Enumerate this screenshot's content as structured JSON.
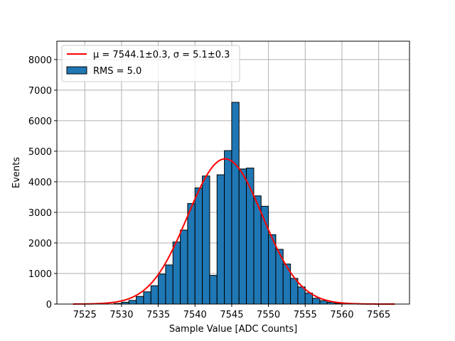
{
  "chart_data": {
    "type": "bar",
    "title": "",
    "xlabel": "Sample Value [ADC Counts]",
    "ylabel": "Events",
    "xlim": [
      7521.2,
      7569.2
    ],
    "ylim": [
      0,
      8600
    ],
    "xticks": [
      7525,
      7530,
      7535,
      7540,
      7545,
      7550,
      7555,
      7560,
      7565
    ],
    "yticks": [
      0,
      1000,
      2000,
      3000,
      4000,
      5000,
      6000,
      7000,
      8000
    ],
    "grid": true,
    "legend_position": "top-left",
    "bar_color": "#1f77b4",
    "bar_edge_color": "#000000",
    "fit_color": "#ff0000",
    "histogram": {
      "name": "RMS = 5.0",
      "bin_width": 1,
      "bins": [
        {
          "x0": 7529,
          "value": 20
        },
        {
          "x0": 7530,
          "value": 60
        },
        {
          "x0": 7531,
          "value": 120
        },
        {
          "x0": 7532,
          "value": 250
        },
        {
          "x0": 7533,
          "value": 400
        },
        {
          "x0": 7534,
          "value": 600
        },
        {
          "x0": 7535,
          "value": 980
        },
        {
          "x0": 7536,
          "value": 1280
        },
        {
          "x0": 7537,
          "value": 2030
        },
        {
          "x0": 7538,
          "value": 2420
        },
        {
          "x0": 7539,
          "value": 3290
        },
        {
          "x0": 7540,
          "value": 3800
        },
        {
          "x0": 7541,
          "value": 4190
        },
        {
          "x0": 7542,
          "value": 940
        },
        {
          "x0": 7543,
          "value": 4230
        },
        {
          "x0": 7544,
          "value": 5020
        },
        {
          "x0": 7545,
          "value": 6600
        },
        {
          "x0": 7546,
          "value": 4420
        },
        {
          "x0": 7547,
          "value": 4450
        },
        {
          "x0": 7548,
          "value": 3540
        },
        {
          "x0": 7549,
          "value": 3200
        },
        {
          "x0": 7550,
          "value": 2270
        },
        {
          "x0": 7551,
          "value": 1790
        },
        {
          "x0": 7552,
          "value": 1310
        },
        {
          "x0": 7553,
          "value": 840
        },
        {
          "x0": 7554,
          "value": 560
        },
        {
          "x0": 7555,
          "value": 360
        },
        {
          "x0": 7556,
          "value": 190
        },
        {
          "x0": 7557,
          "value": 110
        },
        {
          "x0": 7558,
          "value": 60
        },
        {
          "x0": 7559,
          "value": 25
        },
        {
          "x0": 7560,
          "value": 10
        }
      ]
    },
    "fit": {
      "name": "μ = 7544.1±0.3, σ = 5.1±0.3",
      "type": "gaussian",
      "mu": 7544.1,
      "sigma": 5.1,
      "amplitude": 4750,
      "x_range": [
        7523.4,
        7567.2
      ]
    }
  }
}
